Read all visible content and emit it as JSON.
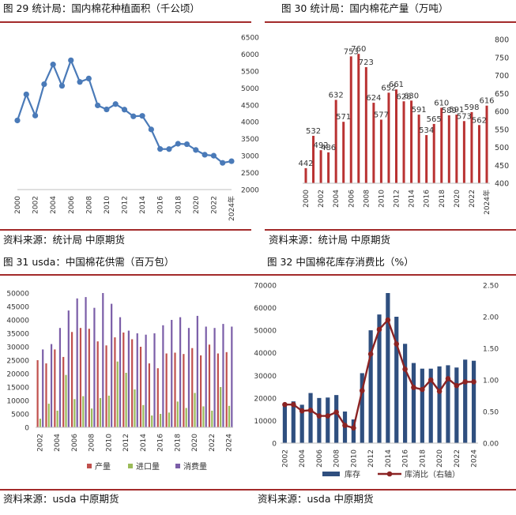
{
  "panels": [
    {
      "title": "图 29 统计局：国内棉花种植面积（千公顷）",
      "source": "资料来源：统计局 中原期货",
      "chart_data": {
        "type": "line",
        "title": "国内棉花种植面积（千公顷）",
        "x": [
          2000,
          2001,
          2002,
          2003,
          2004,
          2005,
          2006,
          2007,
          2008,
          2009,
          2010,
          2011,
          2012,
          2013,
          2014,
          2015,
          2016,
          2017,
          2018,
          2019,
          2020,
          2021,
          2022,
          2023,
          2024
        ],
        "values": [
          4041,
          4810,
          4184,
          5111,
          5693,
          5062,
          5816,
          5176,
          5278,
          4485,
          4366,
          4524,
          4360,
          4162,
          4176,
          3775,
          3198,
          3195,
          3352,
          3339,
          3169,
          3028,
          3000,
          2788,
          2838
        ],
        "xticks": [
          "2000",
          "2002",
          "2004",
          "2006",
          "2008",
          "2010",
          "2012",
          "2014",
          "2016",
          "2018",
          "2020",
          "2022",
          "2024年"
        ],
        "yticks": [
          "2000",
          "2500",
          "3000",
          "3500",
          "4000",
          "4500",
          "5000",
          "5500",
          "6000",
          "6500"
        ],
        "ylim": [
          2000,
          6500
        ],
        "color": "#4a7ab8"
      }
    },
    {
      "title": "图 30 统计局：国内棉花产量（万吨）",
      "source": "资料来源：统计局 中原期货",
      "chart_data": {
        "type": "bar",
        "title": "国内棉花产量（万吨）",
        "categories": [
          "2000",
          "2001",
          "2002",
          "2003",
          "2004",
          "2005",
          "2006",
          "2007",
          "2008",
          "2009",
          "2010",
          "2011",
          "2012",
          "2013",
          "2014",
          "2015",
          "2016",
          "2017",
          "2018",
          "2019",
          "2020",
          "2021",
          "2022",
          "2023",
          "2024"
        ],
        "values": [
          442,
          532,
          492,
          486,
          632,
          571,
          753,
          760,
          723,
          624,
          577,
          652,
          661,
          628,
          630,
          591,
          534,
          565,
          610,
          589,
          591,
          573,
          598,
          562,
          616
        ],
        "labels": [
          "442",
          "532",
          "492",
          "486",
          "632",
          "571",
          "753",
          "760",
          "723",
          "624",
          "577",
          "652",
          "661",
          "628",
          "630",
          "591",
          "534",
          "565",
          "610",
          "589",
          "591",
          "573",
          "598",
          "562",
          "616"
        ],
        "xticks": [
          "2000",
          "2002",
          "2004",
          "2006",
          "2008",
          "2010",
          "2012",
          "2014",
          "2016",
          "2018",
          "2020",
          "2022",
          "2024年"
        ],
        "yticks": [
          "400",
          "450",
          "500",
          "550",
          "600",
          "650",
          "700",
          "750",
          "800"
        ],
        "ylim": [
          400,
          800
        ],
        "color": "#b93232"
      }
    },
    {
      "title": "图 31 usda：中国棉花供需（百万包）",
      "source": "资料来源：usda 中原期货",
      "chart_data": {
        "type": "bar",
        "title": "中国棉花供需（百万包）",
        "categories": [
          "2002",
          "2003",
          "2004",
          "2005",
          "2006",
          "2007",
          "2008",
          "2009",
          "2010",
          "2011",
          "2012",
          "2013",
          "2014",
          "2015",
          "2016",
          "2017",
          "2018",
          "2019",
          "2020",
          "2021",
          "2022",
          "2023",
          "2024"
        ],
        "series": [
          {
            "name": "产量",
            "color": "#c0504d",
            "values": [
              25000,
              23800,
              29000,
              26200,
              35500,
              37000,
              36700,
              32000,
              30500,
              33500,
              35300,
              32800,
              30000,
              23800,
              22000,
              27500,
              27800,
              27300,
              29500,
              26800,
              30800,
              27500,
              28000
            ]
          },
          {
            "name": "进口量",
            "color": "#9bbb59",
            "values": [
              3200,
              8800,
              6200,
              19500,
              10500,
              11600,
              7000,
              10900,
              11800,
              24500,
              20300,
              14100,
              8300,
              4400,
              5000,
              5500,
              9600,
              7200,
              12800,
              7800,
              6200,
              15000,
              8000
            ]
          },
          {
            "name": "消费量",
            "color": "#7b5ea8",
            "values": [
              29000,
              31000,
              37000,
              43500,
              48000,
              48500,
              44500,
              50000,
              46000,
              41000,
              36000,
              35000,
              34500,
              35000,
              38000,
              40000,
              41000,
              37000,
              41500,
              37500,
              37000,
              38500,
              37500
            ]
          }
        ],
        "xticks": [
          "2002",
          "2004",
          "2006",
          "2008",
          "2010",
          "2012",
          "2014",
          "2016",
          "2018",
          "2020",
          "2022",
          "2024"
        ],
        "yticks": [
          "0",
          "5000",
          "10000",
          "15000",
          "20000",
          "25000",
          "30000",
          "35000",
          "40000",
          "45000",
          "50000"
        ],
        "ylim": [
          0,
          50000
        ],
        "legend": "bottom"
      }
    },
    {
      "title": "图 32 中国棉花库存消费比（%）",
      "source": "资料来源：usda 中原期货",
      "chart_data": {
        "type": "bar",
        "title": "中国棉花库存消费比（%）",
        "categories": [
          "2002",
          "2003",
          "2004",
          "2005",
          "2006",
          "2007",
          "2008",
          "2009",
          "2010",
          "2011",
          "2012",
          "2013",
          "2014",
          "2015",
          "2016",
          "2017",
          "2018",
          "2019",
          "2020",
          "2021",
          "2022",
          "2023",
          "2024"
        ],
        "series": [
          {
            "name": "库存",
            "type": "bar",
            "axis": "left",
            "color": "#2f4f7f",
            "values": [
              17500,
              18500,
              17000,
              22200,
              20000,
              20200,
              21300,
              14000,
              10500,
              31000,
              50000,
              57000,
              66500,
              56000,
              44000,
              35500,
              33000,
              33000,
              34000,
              34500,
              33500,
              37000,
              36500
            ]
          },
          {
            "name": "库消比（右轴）",
            "type": "line",
            "axis": "right",
            "color": "#8b2323",
            "values": [
              0.61,
              0.61,
              0.51,
              0.52,
              0.43,
              0.43,
              0.49,
              0.28,
              0.24,
              0.83,
              1.41,
              1.8,
              1.95,
              1.57,
              1.17,
              0.88,
              0.85,
              1.0,
              0.82,
              1.02,
              0.91,
              0.97,
              0.97
            ]
          }
        ],
        "xticks": [
          "2002",
          "2004",
          "2006",
          "2008",
          "2010",
          "2012",
          "2014",
          "2016",
          "2018",
          "2020",
          "2022",
          "2024"
        ],
        "yticks_left": [
          "0",
          "10000",
          "20000",
          "30000",
          "40000",
          "50000",
          "60000",
          "70000"
        ],
        "yticks_right": [
          "0.00",
          "0.50",
          "1.00",
          "1.50",
          "2.00",
          "2.50"
        ],
        "ylim_left": [
          0,
          70000
        ],
        "ylim_right": [
          0,
          2.5
        ],
        "legend": "bottom"
      }
    }
  ]
}
